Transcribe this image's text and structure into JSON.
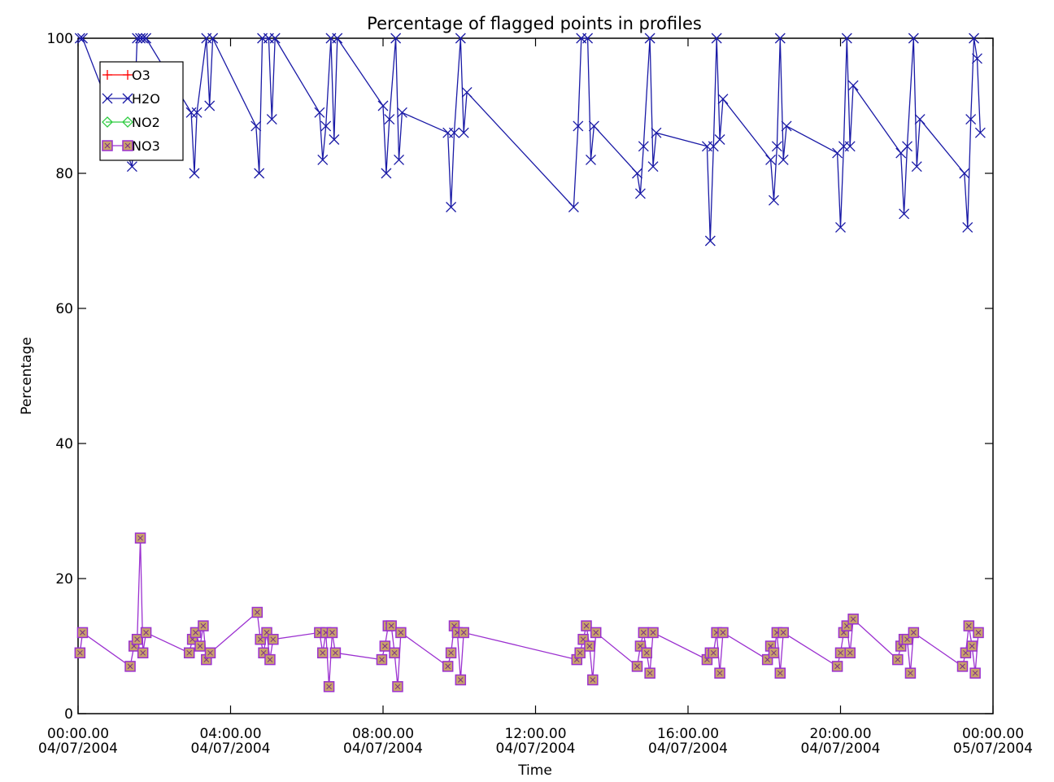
{
  "chart_data": {
    "type": "line",
    "title": "Percentage of flagged points in profiles",
    "xlabel": "Time",
    "ylabel": "Percentage",
    "xlim": [
      "04/07/2004 00:00",
      "05/07/2004 00:00"
    ],
    "ylim": [
      0,
      100
    ],
    "x_tick_labels": [
      {
        "time": "00:00.00",
        "date": "04/07/2004"
      },
      {
        "time": "04:00.00",
        "date": "04/07/2004"
      },
      {
        "time": "08:00.00",
        "date": "04/07/2004"
      },
      {
        "time": "12:00.00",
        "date": "04/07/2004"
      },
      {
        "time": "16:00.00",
        "date": "04/07/2004"
      },
      {
        "time": "20:00.00",
        "date": "04/07/2004"
      },
      {
        "time": "00:00.00",
        "date": "05/07/2004"
      }
    ],
    "y_tick_labels": [
      "0",
      "20",
      "40",
      "60",
      "80",
      "100"
    ],
    "grid": false,
    "legend": "top-left",
    "series": [
      {
        "name": "O3",
        "color": "#ff0000",
        "marker": "plus",
        "times": [],
        "values": []
      },
      {
        "name": "H2O",
        "color": "#1a1aa6",
        "marker": "x",
        "times": [
          "00:03",
          "00:07",
          "01:25",
          "01:33",
          "01:38",
          "01:42",
          "01:47",
          "02:58",
          "03:03",
          "03:07",
          "03:22",
          "03:27",
          "03:32",
          "04:40",
          "04:45",
          "04:50",
          "05:00",
          "05:05",
          "05:10",
          "06:20",
          "06:25",
          "06:30",
          "06:38",
          "06:43",
          "06:48",
          "08:00",
          "08:05",
          "08:10",
          "08:20",
          "08:25",
          "08:30",
          "09:42",
          "09:47",
          "09:52",
          "10:02",
          "10:07",
          "10:12",
          "13:00",
          "13:07",
          "13:12",
          "13:22",
          "13:27",
          "13:32",
          "14:40",
          "14:45",
          "14:50",
          "15:00",
          "15:05",
          "15:10",
          "16:30",
          "16:35",
          "16:40",
          "16:45",
          "16:50",
          "16:55",
          "18:10",
          "18:15",
          "18:20",
          "18:25",
          "18:30",
          "18:35",
          "19:55",
          "20:00",
          "20:05",
          "20:10",
          "20:15",
          "20:20",
          "21:35",
          "21:40",
          "21:45",
          "21:55",
          "22:00",
          "22:05",
          "23:15",
          "23:20",
          "23:25",
          "23:30",
          "23:35",
          "23:40"
        ],
        "values": [
          100,
          100,
          81,
          100,
          100,
          100,
          100,
          89,
          80,
          89,
          100,
          90,
          100,
          87,
          80,
          100,
          100,
          88,
          100,
          89,
          82,
          87,
          100,
          85,
          100,
          90,
          80,
          88,
          100,
          82,
          89,
          86,
          75,
          86,
          100,
          86,
          92,
          75,
          87,
          100,
          100,
          82,
          87,
          80,
          77,
          84,
          100,
          81,
          86,
          84,
          70,
          84,
          100,
          85,
          91,
          82,
          76,
          84,
          100,
          82,
          87,
          83,
          72,
          84,
          100,
          84,
          93,
          83,
          74,
          84,
          100,
          81,
          88,
          80,
          72,
          88,
          100,
          97,
          86
        ]
      },
      {
        "name": "NO2",
        "color": "#2ecc40",
        "marker": "diamond",
        "times": [],
        "values": []
      },
      {
        "name": "NO3",
        "color": "#9b30d0",
        "marker": "square",
        "times": [
          "00:03",
          "00:07",
          "01:22",
          "01:28",
          "01:33",
          "01:38",
          "01:42",
          "01:47",
          "02:55",
          "03:00",
          "03:05",
          "03:12",
          "03:17",
          "03:22",
          "03:28",
          "04:42",
          "04:47",
          "04:52",
          "04:57",
          "05:02",
          "05:07",
          "06:20",
          "06:25",
          "06:30",
          "06:35",
          "06:40",
          "06:45",
          "07:58",
          "08:03",
          "08:08",
          "08:13",
          "08:18",
          "08:23",
          "08:28",
          "09:42",
          "09:47",
          "09:52",
          "09:57",
          "10:02",
          "10:07",
          "13:05",
          "13:10",
          "13:15",
          "13:20",
          "13:25",
          "13:30",
          "13:35",
          "14:40",
          "14:45",
          "14:50",
          "14:55",
          "15:00",
          "15:05",
          "16:30",
          "16:35",
          "16:40",
          "16:45",
          "16:50",
          "16:55",
          "18:05",
          "18:10",
          "18:15",
          "18:20",
          "18:25",
          "18:30",
          "19:55",
          "20:00",
          "20:05",
          "20:10",
          "20:15",
          "20:20",
          "21:30",
          "21:35",
          "21:40",
          "21:45",
          "21:50",
          "21:55",
          "23:12",
          "23:17",
          "23:22",
          "23:27",
          "23:32",
          "23:37"
        ],
        "values": [
          9,
          12,
          7,
          10,
          11,
          26,
          9,
          12,
          9,
          11,
          12,
          10,
          13,
          8,
          9,
          15,
          11,
          9,
          12,
          8,
          11,
          12,
          9,
          12,
          4,
          12,
          9,
          8,
          10,
          13,
          13,
          9,
          4,
          12,
          7,
          9,
          13,
          12,
          5,
          12,
          8,
          9,
          11,
          13,
          10,
          5,
          12,
          7,
          10,
          12,
          9,
          6,
          12,
          8,
          9,
          9,
          12,
          6,
          12,
          8,
          10,
          9,
          12,
          6,
          12,
          7,
          9,
          12,
          13,
          9,
          14,
          8,
          10,
          11,
          11,
          6,
          12,
          7,
          9,
          13,
          10,
          6,
          12
        ]
      }
    ]
  }
}
